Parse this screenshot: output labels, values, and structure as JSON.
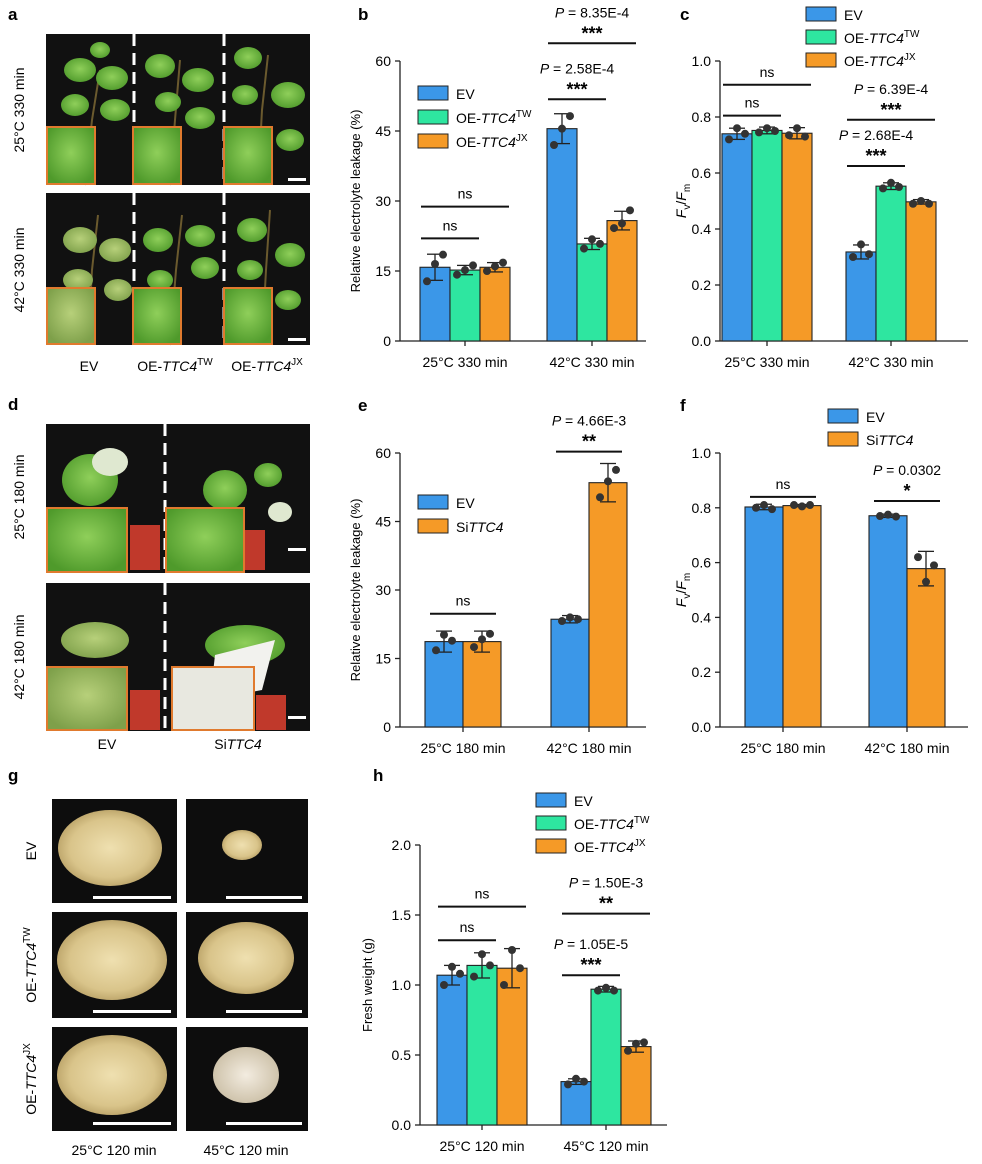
{
  "colors": {
    "ev": "#3b97e8",
    "oe_tw": "#2ee6a0",
    "oe_jx": "#f59a27",
    "si": "#f59a27",
    "frame": "#e07a2e",
    "photo_bg": "#111111"
  },
  "panels": {
    "a": {
      "letter": "a",
      "row_labels": [
        "25°C 330 min",
        "42°C 330 min"
      ],
      "col_labels": [
        {
          "pre": "EV",
          "ital": "",
          "sup": ""
        },
        {
          "pre": "OE-",
          "ital": "TTC4",
          "sup": "TW"
        },
        {
          "pre": "OE-",
          "ital": "TTC4",
          "sup": "JX"
        }
      ]
    },
    "d": {
      "letter": "d",
      "row_labels": [
        "25°C 180 min",
        "42°C 180 min"
      ],
      "col_labels": [
        {
          "pre": "EV",
          "ital": "",
          "sup": ""
        },
        {
          "pre": "Si",
          "ital": "TTC4",
          "sup": ""
        }
      ]
    },
    "g": {
      "letter": "g",
      "row_labels": [
        {
          "pre": "EV",
          "ital": "",
          "sup": ""
        },
        {
          "pre": "OE-",
          "ital": "TTC4",
          "sup": "TW"
        },
        {
          "pre": "OE-",
          "ital": "TTC4",
          "sup": "JX"
        }
      ],
      "col_labels": [
        "25°C 120 min",
        "45°C 120 min"
      ]
    }
  },
  "chart_data": [
    {
      "id": "b",
      "letter": "b",
      "type": "bar",
      "ylabel": "Relative electrolyte leakage (%)",
      "ylim": [
        0,
        60
      ],
      "yticks": [
        0,
        15,
        30,
        45,
        60
      ],
      "categories": [
        "25°C 330 min",
        "42°C 330 min"
      ],
      "legend": [
        {
          "pre": "EV",
          "ital": "",
          "sup": "",
          "color": "ev"
        },
        {
          "pre": "OE-",
          "ital": "TTC4",
          "sup": "TW",
          "color": "oe_tw"
        },
        {
          "pre": "OE-",
          "ital": "TTC4",
          "sup": "JX",
          "color": "oe_jx"
        }
      ],
      "series": [
        {
          "name": "EV",
          "values": [
            15.8,
            45.5
          ],
          "errors": [
            2.8,
            3.2
          ],
          "points": [
            [
              12.8,
              16.5,
              18.5
            ],
            [
              42.0,
              45.5,
              48.2
            ]
          ]
        },
        {
          "name": "OE-TTC4TW",
          "values": [
            15.2,
            20.8
          ],
          "errors": [
            1.0,
            1.2
          ],
          "points": [
            [
              14.2,
              15.2,
              16.2
            ],
            [
              19.8,
              21.8,
              20.8
            ]
          ]
        },
        {
          "name": "OE-TTC4JX",
          "values": [
            15.8,
            25.8
          ],
          "errors": [
            1.0,
            2.0
          ],
          "points": [
            [
              15.0,
              16.0,
              16.8
            ],
            [
              24.2,
              25.2,
              28.0
            ]
          ]
        }
      ],
      "annotations": [
        {
          "group": 0,
          "from": 0,
          "to": 1,
          "y": 22.0,
          "text": "ns",
          "p": ""
        },
        {
          "group": 0,
          "from": 0,
          "to": 2,
          "y": 28.8,
          "text": "ns",
          "p": ""
        },
        {
          "group": 1,
          "from": 0,
          "to": 1,
          "y": 51.8,
          "text": "***",
          "p": "2.58E-4"
        },
        {
          "group": 1,
          "from": 0,
          "to": 2,
          "y": 63.8,
          "text": "***",
          "p": "8.35E-4"
        }
      ]
    },
    {
      "id": "c",
      "letter": "c",
      "type": "bar",
      "ylabel": "Fv/Fm",
      "ylim": [
        0,
        1.0
      ],
      "yticks": [
        0.0,
        0.2,
        0.4,
        0.6,
        0.8,
        1.0
      ],
      "categories": [
        "25°C 330 min",
        "42°C 330 min"
      ],
      "legend": [
        {
          "pre": "EV",
          "ital": "",
          "sup": "",
          "color": "ev"
        },
        {
          "pre": "OE-",
          "ital": "TTC4",
          "sup": "TW",
          "color": "oe_tw"
        },
        {
          "pre": "OE-",
          "ital": "TTC4",
          "sup": "JX",
          "color": "oe_jx"
        }
      ],
      "series": [
        {
          "name": "EV",
          "values": [
            0.74,
            0.318
          ],
          "errors": [
            0.02,
            0.025
          ],
          "points": [
            [
              0.72,
              0.76,
              0.74
            ],
            [
              0.3,
              0.345,
              0.31
            ]
          ]
        },
        {
          "name": "OE-TTC4TW",
          "values": [
            0.752,
            0.553
          ],
          "errors": [
            0.012,
            0.012
          ],
          "points": [
            [
              0.745,
              0.76,
              0.75
            ],
            [
              0.545,
              0.565,
              0.55
            ]
          ]
        },
        {
          "name": "OE-TTC4JX",
          "values": [
            0.742,
            0.497
          ],
          "errors": [
            0.02,
            0.008
          ],
          "points": [
            [
              0.735,
              0.76,
              0.73
            ],
            [
              0.49,
              0.5,
              0.49
            ]
          ]
        }
      ],
      "annotations": [
        {
          "group": 0,
          "from": 0,
          "to": 1,
          "y": 0.805,
          "text": "ns",
          "p": ""
        },
        {
          "group": 0,
          "from": 0,
          "to": 2,
          "y": 0.915,
          "text": "ns",
          "p": ""
        },
        {
          "group": 1,
          "from": 0,
          "to": 1,
          "y": 0.625,
          "text": "***",
          "p": "2.68E-4"
        },
        {
          "group": 1,
          "from": 0,
          "to": 2,
          "y": 0.79,
          "text": "***",
          "p": "6.39E-4"
        }
      ]
    },
    {
      "id": "e",
      "letter": "e",
      "type": "bar",
      "ylabel": "Relative electrolyte leakage (%)",
      "ylim": [
        0,
        60
      ],
      "yticks": [
        0,
        15,
        30,
        45,
        60
      ],
      "categories": [
        "25°C 180 min",
        "42°C 180 min"
      ],
      "legend": [
        {
          "pre": "EV",
          "ital": "",
          "sup": "",
          "color": "ev"
        },
        {
          "pre": "Si",
          "ital": "TTC4",
          "sup": "",
          "color": "si"
        }
      ],
      "series": [
        {
          "name": "EV",
          "values": [
            18.7,
            23.6
          ],
          "errors": [
            2.3,
            0.8
          ],
          "points": [
            [
              16.8,
              20.2,
              18.9
            ],
            [
              23.2,
              24.0,
              23.6
            ]
          ]
        },
        {
          "name": "SiTTC4",
          "values": [
            18.7,
            53.5
          ],
          "errors": [
            2.3,
            4.2
          ],
          "points": [
            [
              17.5,
              19.2,
              20.4
            ],
            [
              50.3,
              53.8,
              56.3
            ]
          ]
        }
      ],
      "annotations": [
        {
          "group": 0,
          "from": 0,
          "to": 1,
          "y": 24.8,
          "text": "ns",
          "p": ""
        },
        {
          "group": 1,
          "from": 0,
          "to": 1,
          "y": 60.3,
          "text": "**",
          "p": "4.66E-3"
        }
      ]
    },
    {
      "id": "f",
      "letter": "f",
      "type": "bar",
      "ylabel": "Fv/Fm",
      "ylim": [
        0,
        1.0
      ],
      "yticks": [
        0.0,
        0.2,
        0.4,
        0.6,
        0.8,
        1.0
      ],
      "categories": [
        "25°C 180 min",
        "42°C 180 min"
      ],
      "legend": [
        {
          "pre": "EV",
          "ital": "",
          "sup": "",
          "color": "ev"
        },
        {
          "pre": "Si",
          "ital": "TTC4",
          "sup": "",
          "color": "si"
        }
      ],
      "series": [
        {
          "name": "EV",
          "values": [
            0.803,
            0.771
          ],
          "errors": [
            0.01,
            0.006
          ],
          "points": [
            [
              0.8,
              0.81,
              0.795
            ],
            [
              0.77,
              0.775,
              0.768
            ]
          ]
        },
        {
          "name": "SiTTC4",
          "values": [
            0.808,
            0.578
          ],
          "errors": [
            0.004,
            0.063
          ],
          "points": [
            [
              0.81,
              0.805,
              0.81
            ],
            [
              0.62,
              0.53,
              0.59
            ]
          ]
        }
      ],
      "annotations": [
        {
          "group": 0,
          "from": 0,
          "to": 1,
          "y": 0.84,
          "text": "ns",
          "p": ""
        },
        {
          "group": 1,
          "from": 0,
          "to": 1,
          "y": 0.825,
          "text": "*",
          "p": "0.0302"
        }
      ]
    },
    {
      "id": "h",
      "letter": "h",
      "type": "bar",
      "ylabel": "Fresh weight (g)",
      "ylim": [
        0,
        2.0
      ],
      "yticks": [
        0.0,
        0.5,
        1.0,
        1.5,
        2.0
      ],
      "categories": [
        "25°C 120 min",
        "45°C 120 min"
      ],
      "legend": [
        {
          "pre": "EV",
          "ital": "",
          "sup": "",
          "color": "ev"
        },
        {
          "pre": "OE-",
          "ital": "TTC4",
          "sup": "TW",
          "color": "oe_tw"
        },
        {
          "pre": "OE-",
          "ital": "TTC4",
          "sup": "JX",
          "color": "oe_jx"
        }
      ],
      "series": [
        {
          "name": "EV",
          "values": [
            1.07,
            0.31
          ],
          "errors": [
            0.07,
            0.02
          ],
          "points": [
            [
              1.0,
              1.13,
              1.08
            ],
            [
              0.29,
              0.33,
              0.31
            ]
          ]
        },
        {
          "name": "OE-TTC4TW",
          "values": [
            1.14,
            0.97
          ],
          "errors": [
            0.09,
            0.02
          ],
          "points": [
            [
              1.06,
              1.22,
              1.14
            ],
            [
              0.96,
              0.98,
              0.96
            ]
          ]
        },
        {
          "name": "OE-TTC4JX",
          "values": [
            1.12,
            0.56
          ],
          "errors": [
            0.14,
            0.04
          ],
          "points": [
            [
              1.0,
              1.25,
              1.12
            ],
            [
              0.53,
              0.58,
              0.59
            ]
          ]
        }
      ],
      "annotations": [
        {
          "group": 0,
          "from": 0,
          "to": 1,
          "y": 1.32,
          "text": "ns",
          "p": ""
        },
        {
          "group": 0,
          "from": 0,
          "to": 2,
          "y": 1.56,
          "text": "ns",
          "p": ""
        },
        {
          "group": 1,
          "from": 0,
          "to": 1,
          "y": 1.07,
          "text": "***",
          "p": "1.05E-5"
        },
        {
          "group": 1,
          "from": 0,
          "to": 2,
          "y": 1.51,
          "text": "**",
          "p": "1.50E-3"
        }
      ]
    }
  ]
}
